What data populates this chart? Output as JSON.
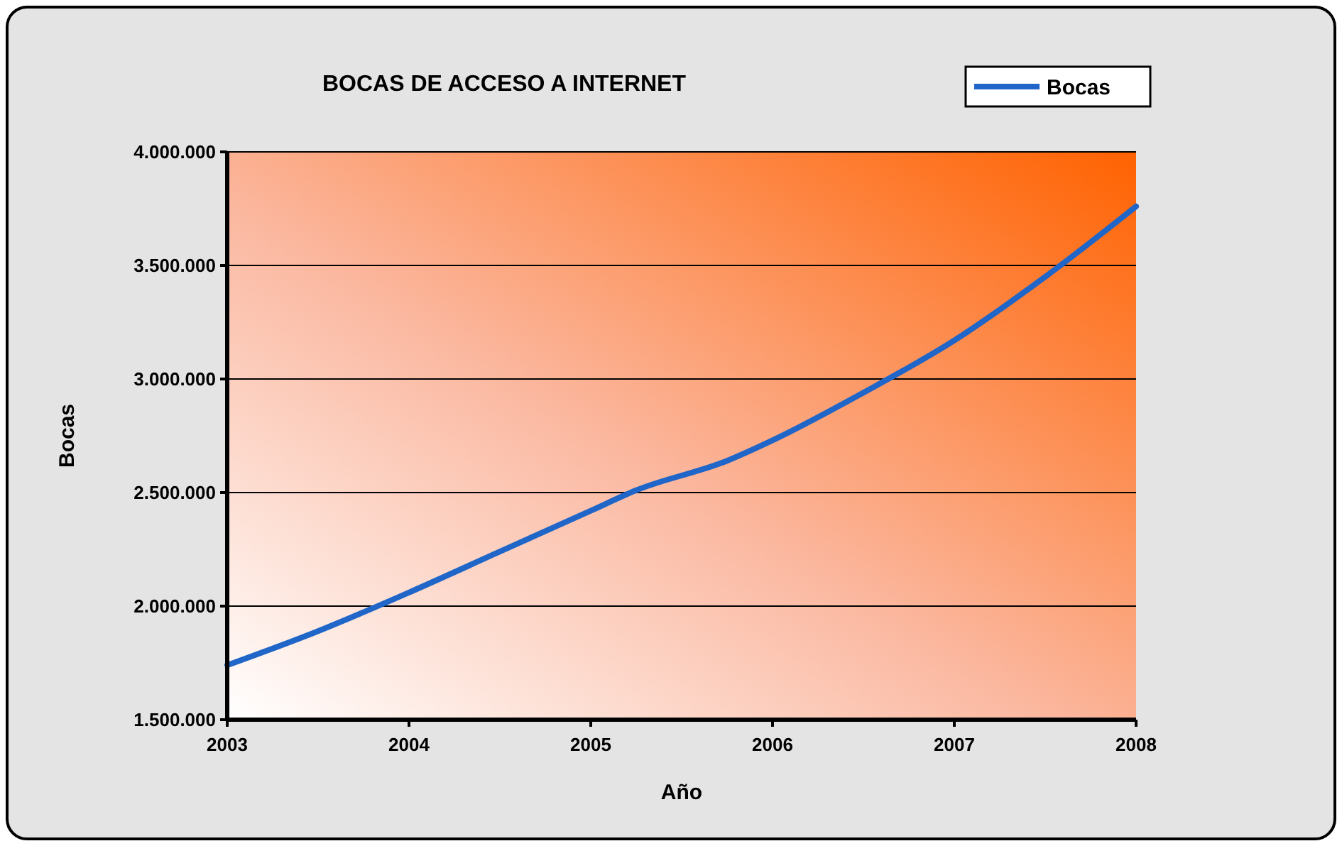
{
  "chart_data": {
    "type": "line",
    "title": "BOCAS DE ACCESO A INTERNET",
    "xlabel": "Año",
    "ylabel": "Bocas",
    "x": [
      2003,
      2003.5,
      2004,
      2004.5,
      2005,
      2005.25,
      2005.75,
      2006,
      2006.5,
      2007,
      2007.5,
      2008
    ],
    "series": [
      {
        "name": "Bocas",
        "color": "#1f66c8",
        "values": [
          1740000,
          1890000,
          2060000,
          2240000,
          2420000,
          2510000,
          2640000,
          2730000,
          2940000,
          3170000,
          3450000,
          3760000
        ]
      }
    ],
    "xlim": [
      2003,
      2008
    ],
    "xticks": [
      2003,
      2004,
      2005,
      2006,
      2007,
      2008
    ],
    "ylim": [
      1500000,
      4000000
    ],
    "yticks": [
      {
        "value": 1500000,
        "label": "1.500.000"
      },
      {
        "value": 2000000,
        "label": "2.000.000"
      },
      {
        "value": 2500000,
        "label": "2.500.000"
      },
      {
        "value": 3000000,
        "label": "3.000.000"
      },
      {
        "value": 3500000,
        "label": "3.500.000"
      },
      {
        "value": 4000000,
        "label": "4.000.000"
      }
    ],
    "grid": "y",
    "legend": "top right",
    "marker": "none",
    "line_style": "solid"
  }
}
